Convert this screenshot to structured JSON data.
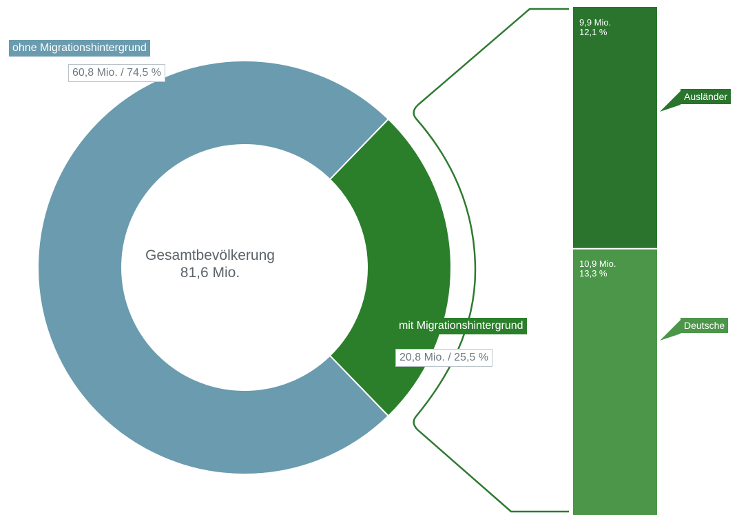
{
  "colors": {
    "ohne": "#6a9bae",
    "mit": "#2b7f2b",
    "auslaender": "#2a742d",
    "deutsche": "#4c964a",
    "bracket": "#2f7a32",
    "text_gray": "#5d6368"
  },
  "chart_data": [
    {
      "type": "pie",
      "variant": "donut",
      "center_label": [
        "Gesamtbevölkerung",
        "81,6 Mio."
      ],
      "slices": [
        {
          "name": "ohne Migrationshintergrund",
          "value": 60.8,
          "value_label": "60,8 Mio. / 74,5 %",
          "percent": 74.5
        },
        {
          "name": "mit Migrationshintergrund",
          "value": 20.8,
          "value_label": "20,8 Mio. / 25,5 %",
          "percent": 25.5
        }
      ]
    },
    {
      "type": "bar",
      "variant": "stacked",
      "categories": [
        "mit Migrationshintergrund"
      ],
      "series": [
        {
          "name": "Ausländer",
          "value": 9.9,
          "value_label": "9,9 Mio.",
          "percent_label": "12,1 %"
        },
        {
          "name": "Deutsche",
          "value": 10.9,
          "value_label": "10,9 Mio.",
          "percent_label": "13,3 %"
        }
      ]
    }
  ]
}
